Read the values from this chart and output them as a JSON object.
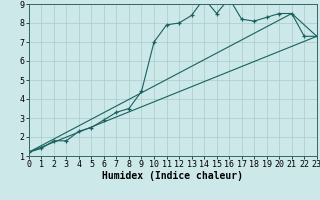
{
  "bg_color": "#cce8e8",
  "grid_color": "#aacccc",
  "line_color": "#1a6060",
  "marker_color": "#1a6060",
  "xlabel": "Humidex (Indice chaleur)",
  "xlabel_fontsize": 7,
  "tick_fontsize": 6,
  "ylim": [
    1,
    9
  ],
  "xlim": [
    0,
    23
  ],
  "yticks": [
    1,
    2,
    3,
    4,
    5,
    6,
    7,
    8,
    9
  ],
  "xticks": [
    0,
    1,
    2,
    3,
    4,
    5,
    6,
    7,
    8,
    9,
    10,
    11,
    12,
    13,
    14,
    15,
    16,
    17,
    18,
    19,
    20,
    21,
    22,
    23
  ],
  "line1_x": [
    0,
    1,
    2,
    3,
    4,
    5,
    6,
    7,
    8,
    9,
    10,
    11,
    12,
    13,
    14,
    15,
    16,
    17,
    18,
    19,
    20,
    21,
    22,
    23
  ],
  "line1_y": [
    1.2,
    1.4,
    1.8,
    1.8,
    2.3,
    2.5,
    2.9,
    3.3,
    3.5,
    4.4,
    7.0,
    7.9,
    8.0,
    8.4,
    9.3,
    8.5,
    9.3,
    8.2,
    8.1,
    8.3,
    8.5,
    8.5,
    7.3,
    7.3
  ],
  "line2_x": [
    0,
    21,
    23
  ],
  "line2_y": [
    1.2,
    8.5,
    7.3
  ],
  "line3_x": [
    0,
    23
  ],
  "line3_y": [
    1.2,
    7.3
  ],
  "figsize": [
    3.2,
    2.0
  ],
  "dpi": 100
}
